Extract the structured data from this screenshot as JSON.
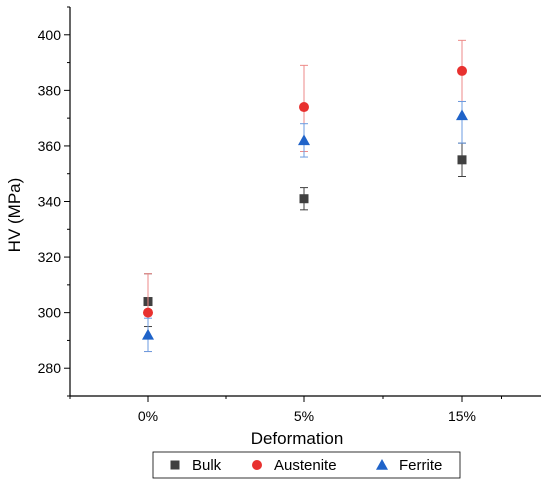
{
  "chart_data": {
    "type": "scatter",
    "xlabel": "Deformation",
    "ylabel": "HV (MPa)",
    "categories": [
      "0%",
      "5%",
      "15%"
    ],
    "ylim": [
      270,
      410
    ],
    "yticks": [
      280,
      300,
      320,
      340,
      360,
      380,
      400
    ],
    "legend_position": "bottom",
    "series": [
      {
        "name": "Bulk",
        "marker": "square",
        "color": "#404040",
        "values": [
          304,
          341,
          355
        ],
        "err_low": [
          9,
          4,
          6
        ],
        "err_high": [
          10,
          4,
          6
        ]
      },
      {
        "name": "Austenite",
        "marker": "circle",
        "color": "#e8312f",
        "values": [
          300,
          374,
          387
        ],
        "err_low": [
          14,
          16,
          11
        ],
        "err_high": [
          14,
          15,
          11
        ]
      },
      {
        "name": "Ferrite",
        "marker": "triangle",
        "color": "#1f63c9",
        "values": [
          292,
          362,
          371
        ],
        "err_low": [
          6,
          6,
          10
        ],
        "err_high": [
          6,
          6,
          5
        ]
      }
    ]
  }
}
